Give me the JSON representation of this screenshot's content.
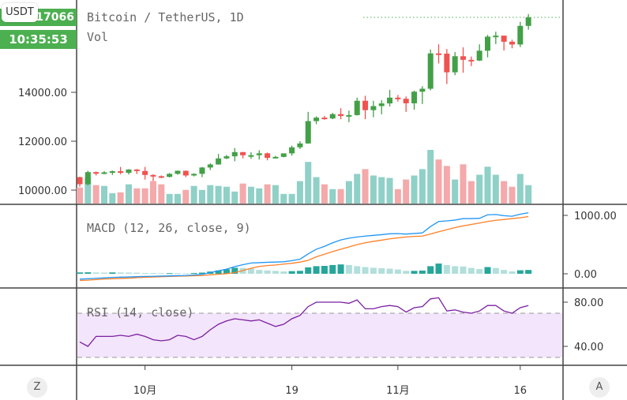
{
  "header": {
    "symbol_legend": "Bitcoin / TetherUS, 1D",
    "volume_legend": "Vol",
    "currency_badge": "USDT",
    "last_price_label": "17066",
    "countdown_label": "10:35:53"
  },
  "colors": {
    "up": "#43a047",
    "down": "#ef5350",
    "volume_up": "#8fd0c7",
    "volume_down": "#f4a9aa",
    "macd_line": "#2196f3",
    "signal_line": "#ff7f27",
    "histogram_up_strong": "#26a69a",
    "histogram_weak": "#b2dfdb",
    "rsi_line": "#7b1fa2",
    "rsi_band": "#f3e5fb",
    "price_tag": "#4caf50"
  },
  "buttons": {
    "left": "Z",
    "right": "A"
  },
  "chart_data": [
    {
      "type": "candlestick",
      "title": "Bitcoin / TetherUS, 1D",
      "y_ticks": [
        "10000.00",
        "12000.00",
        "14000.00"
      ],
      "y_tick_values": [
        10000,
        12000,
        14000
      ],
      "ylim": [
        9450,
        17700
      ],
      "x_ticks": [
        "10月",
        "19",
        "11月",
        "16"
      ],
      "x_tick_index": [
        8,
        26,
        39,
        54
      ],
      "ohlc": [
        [
          10530,
          10550,
          10140,
          10241
        ],
        [
          10241,
          10790,
          10200,
          10736
        ],
        [
          10736,
          10760,
          10600,
          10687
        ],
        [
          10687,
          10780,
          10650,
          10728
        ],
        [
          10728,
          10800,
          10620,
          10775
        ],
        [
          10775,
          10950,
          10650,
          10709
        ],
        [
          10709,
          10860,
          10640,
          10844
        ],
        [
          10844,
          10860,
          10660,
          10784
        ],
        [
          10784,
          10950,
          10430,
          10620
        ],
        [
          10620,
          10650,
          10370,
          10570
        ],
        [
          10570,
          10600,
          10490,
          10542
        ],
        [
          10542,
          10700,
          10520,
          10666
        ],
        [
          10666,
          10800,
          10630,
          10792
        ],
        [
          10792,
          10800,
          10530,
          10599
        ],
        [
          10599,
          10690,
          10560,
          10666
        ],
        [
          10666,
          10950,
          10530,
          10925
        ],
        [
          10925,
          11100,
          10820,
          11050
        ],
        [
          11050,
          11480,
          11040,
          11296
        ],
        [
          11296,
          11440,
          11270,
          11384
        ],
        [
          11384,
          11720,
          11180,
          11555
        ],
        [
          11555,
          11560,
          11300,
          11425
        ],
        [
          11425,
          11550,
          11280,
          11429
        ],
        [
          11429,
          11630,
          11250,
          11505
        ],
        [
          11505,
          11540,
          11220,
          11319
        ],
        [
          11319,
          11400,
          11300,
          11360
        ],
        [
          11360,
          11500,
          11340,
          11503
        ],
        [
          11503,
          11820,
          11410,
          11751
        ],
        [
          11751,
          12000,
          11680,
          11909
        ],
        [
          11909,
          13200,
          11900,
          12823
        ],
        [
          12823,
          13020,
          12700,
          12965
        ],
        [
          12965,
          13030,
          12880,
          12931
        ],
        [
          12931,
          13160,
          12900,
          13108
        ],
        [
          13108,
          13350,
          12900,
          13031
        ],
        [
          13031,
          13250,
          12780,
          13068
        ],
        [
          13068,
          13780,
          13050,
          13654
        ],
        [
          13654,
          13860,
          12900,
          13271
        ],
        [
          13271,
          13650,
          12980,
          13437
        ],
        [
          13437,
          13680,
          13100,
          13546
        ],
        [
          13546,
          14100,
          13420,
          13781
        ],
        [
          13781,
          13890,
          13620,
          13737
        ],
        [
          13737,
          13830,
          13200,
          13550
        ],
        [
          13550,
          14070,
          13290,
          14025
        ],
        [
          14025,
          14250,
          13520,
          14146
        ],
        [
          14146,
          15750,
          14080,
          15591
        ],
        [
          15591,
          15960,
          15180,
          15580
        ],
        [
          15580,
          15770,
          14340,
          14818
        ],
        [
          14818,
          15650,
          14700,
          15475
        ],
        [
          15475,
          15840,
          14800,
          15328
        ],
        [
          15328,
          15460,
          15070,
          15297
        ],
        [
          15297,
          15960,
          15280,
          15701
        ],
        [
          15701,
          16350,
          15430,
          16276
        ],
        [
          16276,
          16480,
          15970,
          16317
        ],
        [
          16317,
          16320,
          15710,
          16068
        ],
        [
          16068,
          16150,
          15800,
          15955
        ],
        [
          15955,
          16880,
          15850,
          16716
        ],
        [
          16716,
          17200,
          16560,
          17066
        ]
      ],
      "last_price": 17066,
      "volume": [
        20,
        33,
        23,
        22,
        13,
        14,
        24,
        19,
        19,
        28,
        24,
        12,
        12,
        17,
        22,
        17,
        23,
        22,
        21,
        15,
        25,
        21,
        19,
        24,
        23,
        12,
        12,
        28,
        52,
        33,
        24,
        18,
        18,
        28,
        37,
        43,
        35,
        33,
        32,
        18,
        30,
        35,
        43,
        67,
        55,
        47,
        30,
        49,
        28,
        36,
        46,
        36,
        28,
        21,
        37,
        23
      ]
    },
    {
      "type": "line",
      "title": "MACD (12, 26, close, 9)",
      "y_ticks": [
        "0.00",
        "1000.00"
      ],
      "y_tick_values": [
        0,
        1000
      ],
      "series": [
        {
          "key": "macd",
          "values": [
            -92,
            -85,
            -78,
            -70,
            -62,
            -58,
            -55,
            -50,
            -46,
            -44,
            -40,
            -36,
            -33,
            -30,
            -20,
            -10,
            20,
            50,
            80,
            124,
            155,
            184,
            190,
            197,
            200,
            205,
            225,
            250,
            340,
            420,
            470,
            530,
            580,
            610,
            630,
            645,
            658,
            670,
            685,
            688,
            680,
            690,
            700,
            810,
            895,
            905,
            920,
            945,
            945,
            950,
            1010,
            1015,
            995,
            985,
            1020,
            1045
          ]
        },
        {
          "key": "signal",
          "values": [
            -115,
            -110,
            -100,
            -90,
            -85,
            -80,
            -75,
            -68,
            -60,
            -56,
            -50,
            -46,
            -42,
            -38,
            -34,
            -30,
            -18,
            -8,
            2,
            20,
            55,
            95,
            125,
            140,
            150,
            165,
            180,
            200,
            230,
            290,
            335,
            380,
            420,
            460,
            500,
            530,
            555,
            575,
            598,
            615,
            630,
            640,
            645,
            680,
            720,
            755,
            790,
            820,
            845,
            870,
            895,
            915,
            930,
            945,
            960,
            980
          ]
        }
      ]
    },
    {
      "type": "line",
      "title": "RSI (14, close)",
      "y_ticks": [
        "40.00",
        "80.00"
      ],
      "y_tick_values": [
        40,
        80
      ],
      "bands": [
        70,
        30
      ],
      "values": [
        44,
        40,
        49,
        49,
        49,
        50,
        49,
        51,
        49,
        46,
        45,
        46,
        50,
        49,
        46,
        49,
        55,
        60,
        63,
        65,
        64,
        63,
        64,
        61,
        58,
        60,
        65,
        68,
        76,
        80,
        80,
        80,
        80,
        79,
        82,
        74,
        74,
        76,
        77,
        76,
        71,
        75,
        76,
        83,
        84,
        72,
        73,
        71,
        70,
        72,
        77,
        77,
        72,
        70,
        75,
        77
      ]
    }
  ]
}
